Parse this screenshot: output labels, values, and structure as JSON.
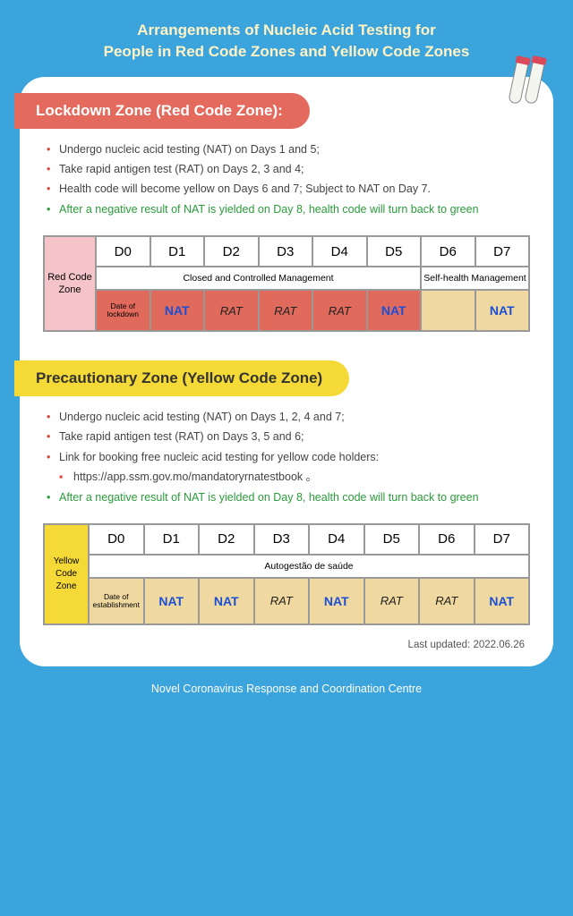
{
  "title": "Arrangements of Nucleic Acid Testing for\nPeople in Red Code Zones and Yellow Code Zones",
  "footer": "Novel Coronavirus Response and Coordination Centre",
  "last_updated": "Last updated: 2022.06.26",
  "colors": {
    "page_bg": "#3ba4dd",
    "card_bg": "#ffffff",
    "title_color": "#fff3c4",
    "red_header_bg": "#e36a5c",
    "yellow_header_bg": "#f5d936",
    "nat_color": "#1a4fd6",
    "green_text": "#2a9d3a",
    "cell_red_bg": "#e06a5c",
    "cell_tan_bg": "#f0d9a0",
    "side_red_bg": "#f5c4c9",
    "side_yellow_bg": "#f5d936"
  },
  "red_zone": {
    "header": "Lockdown Zone (Red Code Zone):",
    "bullets": [
      {
        "text": "Undergo nucleic acid testing (NAT) on Days 1 and 5;",
        "style": "red"
      },
      {
        "text": "Take rapid antigen test (RAT) on Days 2, 3 and 4;",
        "style": "red"
      },
      {
        "text": "Health code will become yellow on Days 6 and 7; Subject to NAT on Day 7.",
        "style": "red"
      },
      {
        "text": "After a negative result of NAT is yielded on Day 8, health code will turn back to green",
        "style": "green"
      }
    ],
    "side_label": "Red Code Zone",
    "days": [
      "D0",
      "D1",
      "D2",
      "D3",
      "D4",
      "D5",
      "D6",
      "D7"
    ],
    "mgmt_a": "Closed and Controlled Management",
    "mgmt_b": "Self-health Management",
    "d0_label": "Date of lockdown",
    "tests": [
      "NAT",
      "RAT",
      "RAT",
      "RAT",
      "NAT",
      "",
      "NAT"
    ]
  },
  "yellow_zone": {
    "header": "Precautionary Zone (Yellow Code Zone)",
    "bullets": [
      {
        "text": "Undergo nucleic acid testing (NAT) on Days 1, 2, 4 and 7;",
        "style": "red"
      },
      {
        "text": "Take rapid antigen test (RAT) on Days 3, 5 and 6;",
        "style": "red"
      },
      {
        "text": "Link for booking free nucleic acid testing for yellow code holders:",
        "style": "red",
        "sub": "https://app.ssm.gov.mo/mandatoryrnatestbook 。"
      },
      {
        "text": "After a negative result of NAT is yielded on Day 8, health code will turn back to green",
        "style": "green"
      }
    ],
    "side_label": "Yellow Code Zone",
    "days": [
      "D0",
      "D1",
      "D2",
      "D3",
      "D4",
      "D5",
      "D6",
      "D7"
    ],
    "mgmt": "Autogestão de saúde",
    "d0_label": "Date of establishment",
    "tests": [
      "NAT",
      "NAT",
      "RAT",
      "NAT",
      "RAT",
      "RAT",
      "NAT"
    ]
  }
}
